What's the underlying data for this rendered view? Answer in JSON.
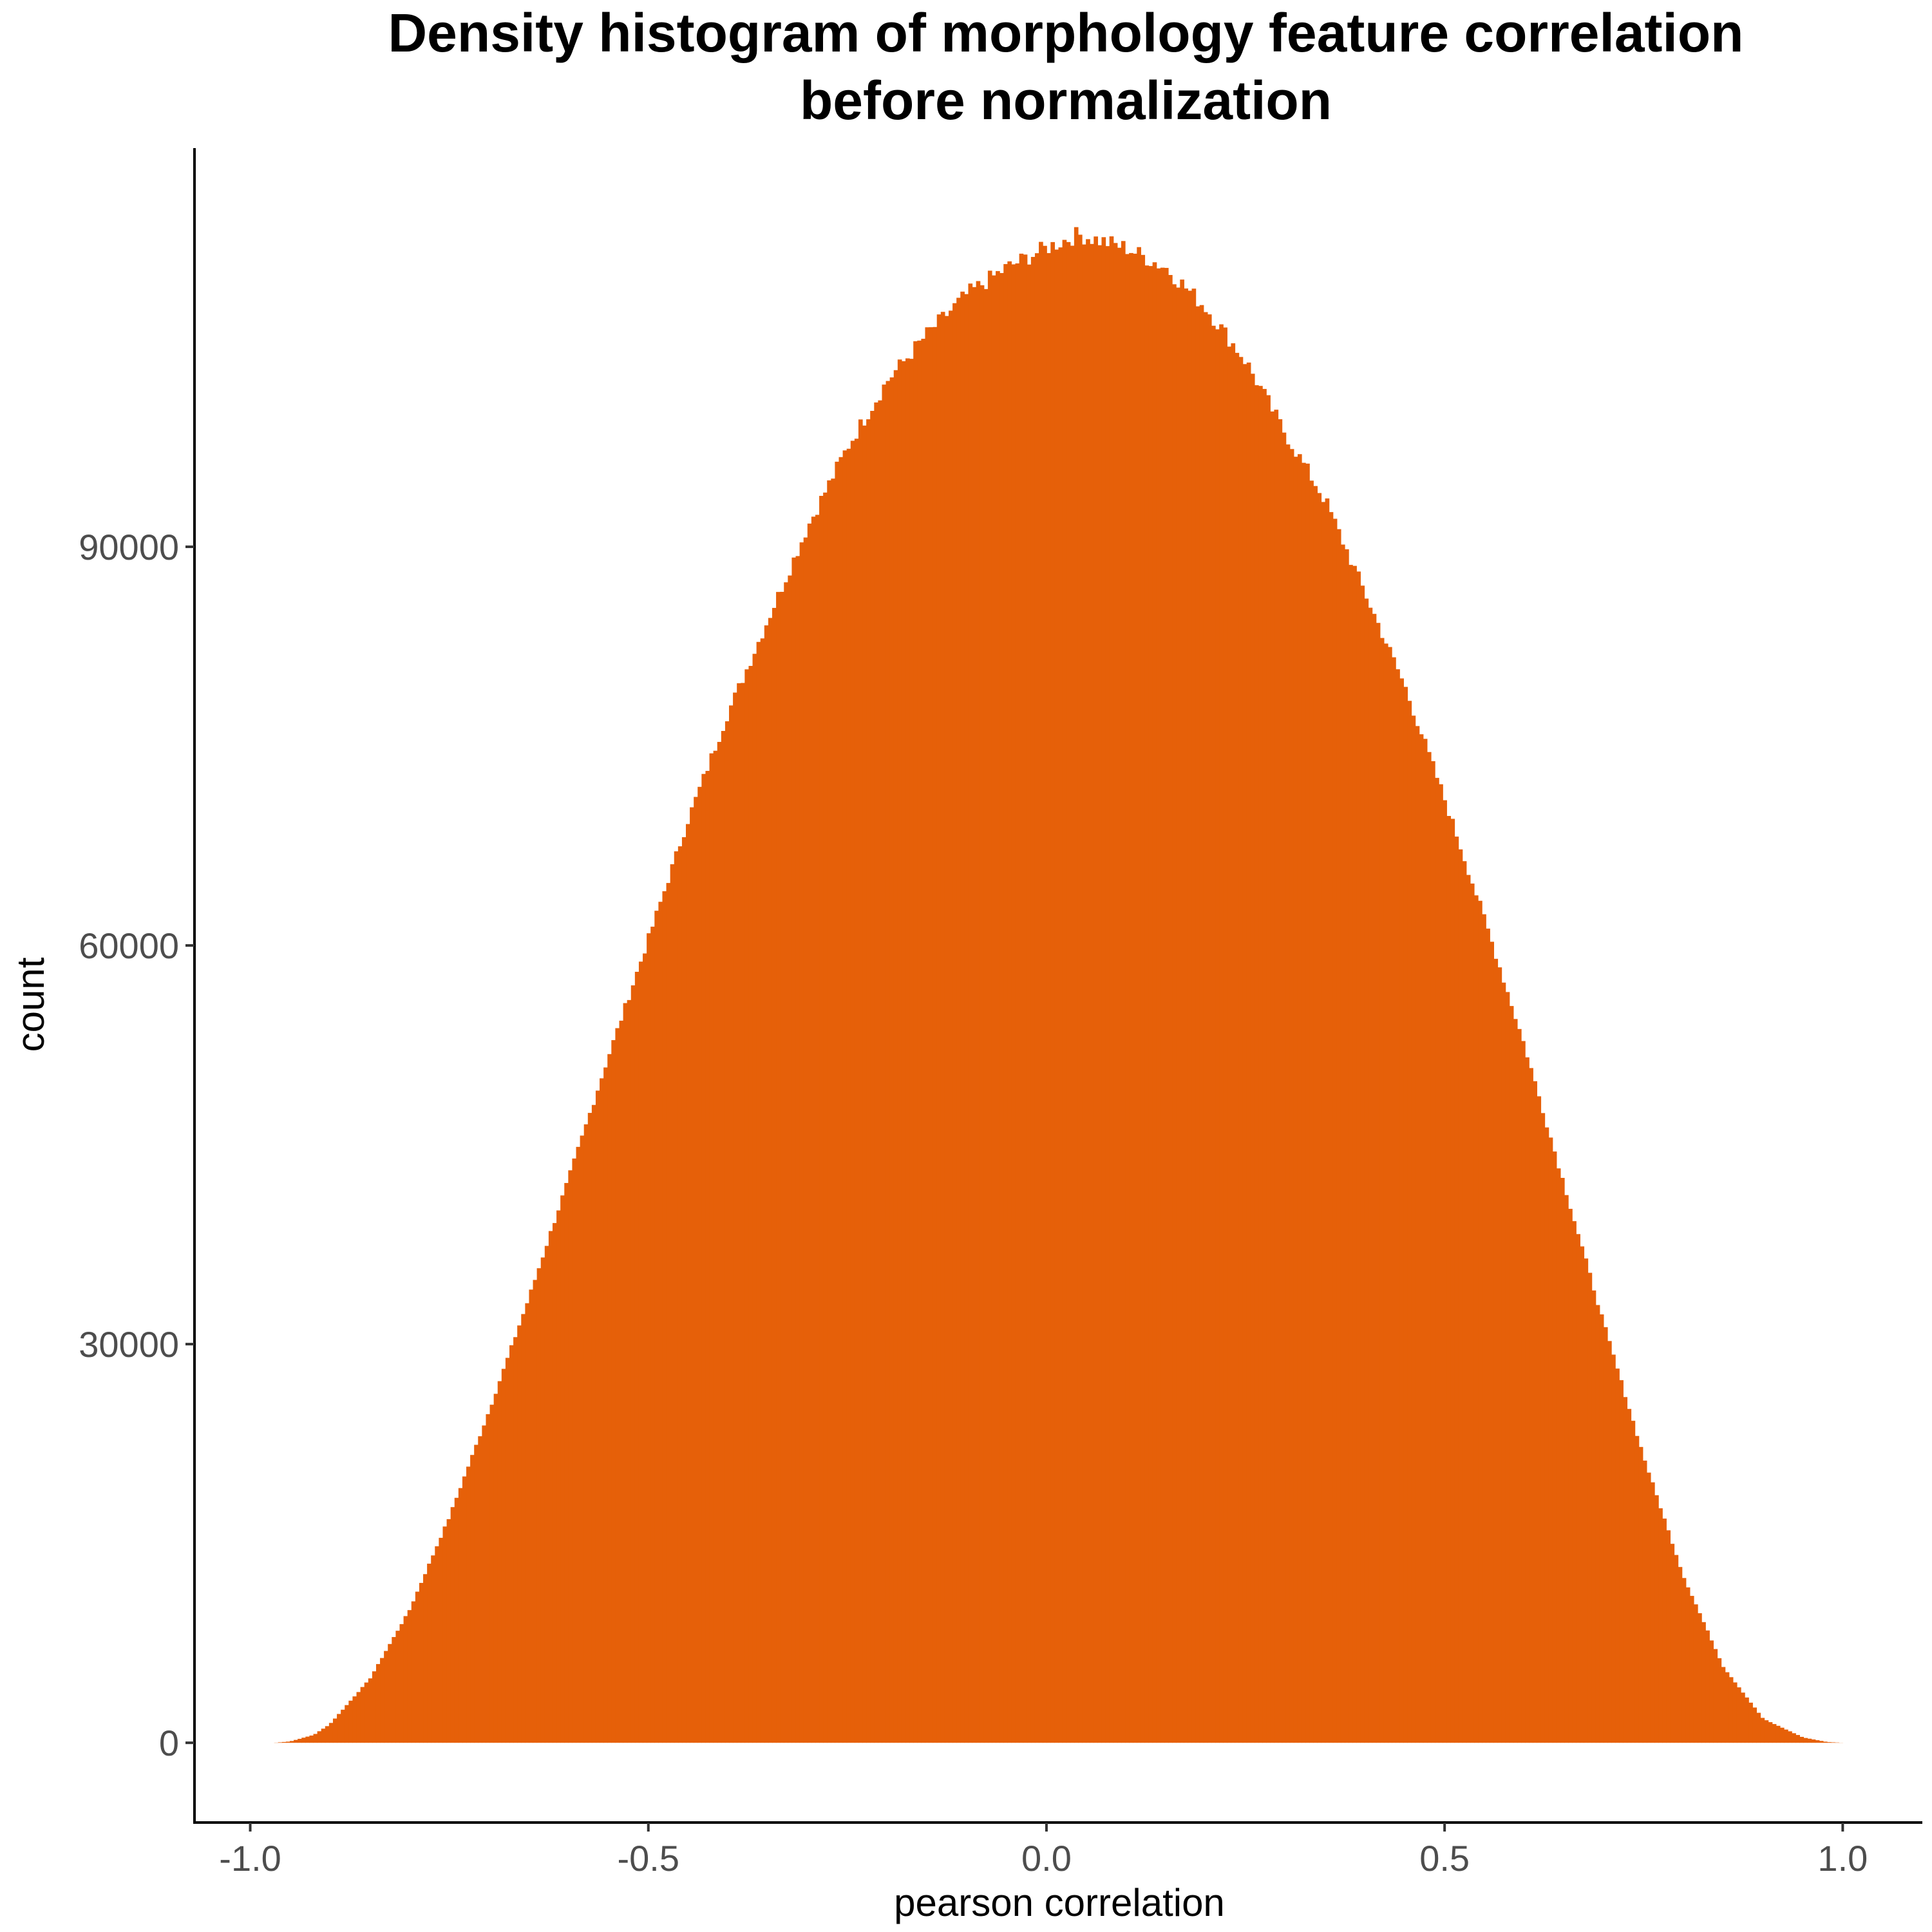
{
  "chart_data": {
    "type": "histogram",
    "title": "Density histogram of morphology feature correlation\nbefore normalization",
    "title_lines": [
      "Density histogram of morphology feature correlation",
      "before normalization"
    ],
    "xlabel": "pearson correlation",
    "ylabel": "count",
    "xlim": [
      -1.07,
      1.1
    ],
    "ylim": [
      -6000,
      120000
    ],
    "x_ticks": [
      -1.0,
      -0.5,
      0.0,
      0.5,
      1.0
    ],
    "x_tick_labels": [
      "-1.0",
      "-0.5",
      "0.0",
      "0.5",
      "1.0"
    ],
    "y_ticks": [
      0,
      30000,
      60000,
      90000
    ],
    "y_tick_labels": [
      "0",
      "30000",
      "60000",
      "90000"
    ],
    "bar_color": "#e66009",
    "grid": false,
    "legend": "none",
    "curve_points": {
      "x": [
        -0.97,
        -0.95,
        -0.92,
        -0.9,
        -0.85,
        -0.8,
        -0.75,
        -0.7,
        -0.65,
        -0.6,
        -0.55,
        -0.5,
        -0.45,
        -0.4,
        -0.35,
        -0.3,
        -0.25,
        -0.2,
        -0.15,
        -0.1,
        -0.05,
        0.0,
        0.04,
        0.1,
        0.15,
        0.2,
        0.25,
        0.3,
        0.35,
        0.4,
        0.45,
        0.5,
        0.55,
        0.6,
        0.65,
        0.7,
        0.75,
        0.8,
        0.85,
        0.9,
        0.95,
        0.98,
        1.0
      ],
      "y": [
        0,
        100,
        600,
        1400,
        4800,
        10000,
        17000,
        25000,
        33500,
        42500,
        51700,
        60500,
        69500,
        77500,
        84500,
        91500,
        97500,
        102500,
        106000,
        109000,
        111000,
        112500,
        113500,
        112500,
        111000,
        108000,
        104000,
        98500,
        93500,
        86500,
        79500,
        71000,
        62000,
        52500,
        42000,
        31500,
        21500,
        12500,
        5700,
        1800,
        400,
        60,
        0
      ]
    }
  }
}
